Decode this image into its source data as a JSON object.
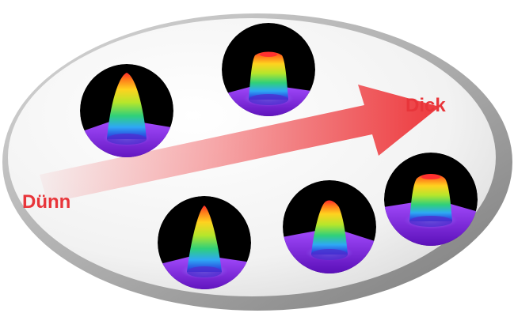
{
  "labels": {
    "start": "Dünn",
    "end": "Dick"
  },
  "colors": {
    "label": "#e8353a",
    "arrow": "#ee3a3e",
    "dish_rim": "#9e9e9e",
    "dish_inner": "#f4f4f4",
    "circle_background": "#000000",
    "floor_violet": "#7d1fd6"
  },
  "profiles": [
    {
      "name": "peak-1",
      "shape": "narrow"
    },
    {
      "name": "peak-2",
      "shape": "flat-top"
    },
    {
      "name": "peak-3",
      "shape": "narrow"
    },
    {
      "name": "peak-4",
      "shape": "medium"
    },
    {
      "name": "peak-5",
      "shape": "flat-top"
    }
  ]
}
